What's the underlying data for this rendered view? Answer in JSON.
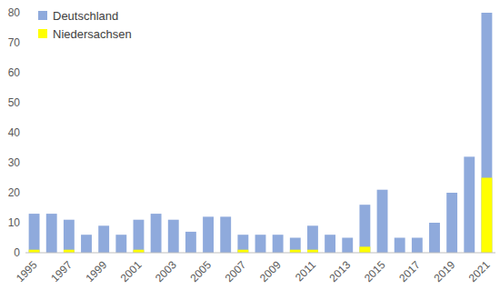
{
  "chart_data": {
    "type": "bar",
    "categories": [
      "1995",
      null,
      "1997",
      null,
      "1999",
      null,
      "2001",
      null,
      "2003",
      null,
      "2005",
      null,
      "2007",
      null,
      "2009",
      null,
      "2011",
      null,
      "2013",
      null,
      "2015",
      null,
      "2017",
      null,
      "2019",
      null,
      "2021"
    ],
    "series": [
      {
        "name": "Deutschland",
        "color": "#8faadc",
        "values": [
          13,
          13,
          11,
          6,
          9,
          6,
          11,
          13,
          11,
          7,
          12,
          12,
          6,
          6,
          6,
          5,
          9,
          6,
          5,
          16,
          21,
          5,
          5,
          10,
          20,
          32,
          80
        ]
      },
      {
        "name": "Niedersachsen",
        "color": "#ffff00",
        "values": [
          1,
          0,
          1,
          0,
          0,
          0,
          1,
          0,
          0,
          0,
          0,
          0,
          1,
          0,
          0,
          1,
          1,
          0,
          0,
          2,
          0,
          0,
          0,
          0,
          0,
          0,
          25
        ]
      }
    ],
    "ylim": [
      0,
      80
    ],
    "yticks": [
      0,
      10,
      20,
      30,
      40,
      50,
      60,
      70,
      80
    ],
    "legend": "upper left"
  }
}
